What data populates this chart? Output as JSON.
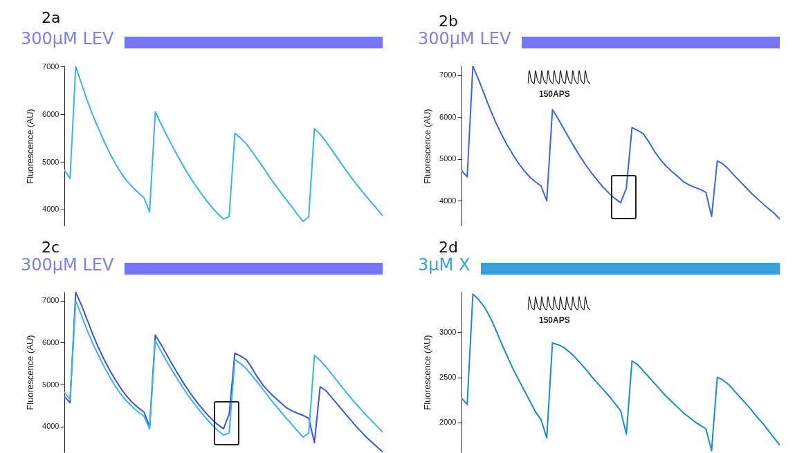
{
  "chart_data": [
    {
      "type": "line",
      "title": "2a",
      "ylabel": "Fluorescence (AU)",
      "tick_labels": "y",
      "grid": false,
      "annotations": [
        "300µM LEV"
      ],
      "categories": [
        null,
        null,
        null,
        null,
        null,
        null,
        null,
        null,
        null,
        null,
        null,
        null,
        null,
        null,
        null,
        null,
        null,
        null,
        null,
        null,
        null,
        null,
        null,
        null,
        null,
        null,
        null,
        null,
        null,
        null,
        null,
        null,
        null,
        null,
        null,
        null,
        null,
        null,
        null,
        null,
        null,
        null,
        null,
        null,
        null,
        null,
        null,
        null,
        null,
        null,
        null,
        null,
        null,
        null,
        null,
        null,
        null
      ],
      "ylim": [
        3650,
        7020
      ],
      "yticks": [
        4000,
        5000,
        6000,
        7000
      ],
      "series": [
        {
          "color": "#3bb4ea",
          "values": [
            4830,
            4650,
            7000,
            6650,
            6300,
            5980,
            5700,
            5430,
            5180,
            4960,
            4760,
            4600,
            4470,
            4350,
            4250,
            3950,
            6050,
            5800,
            5560,
            5330,
            5110,
            4900,
            4700,
            4520,
            4350,
            4190,
            4040,
            3910,
            3800,
            3850,
            5600,
            5500,
            5380,
            5220,
            5050,
            4880,
            4700,
            4530,
            4370,
            4210,
            4060,
            3900,
            3750,
            3850,
            5700,
            5580,
            5430,
            5260,
            5090,
            4920,
            4750,
            4590,
            4440,
            4290,
            4150,
            4010,
            3870
          ]
        }
      ]
    },
    {
      "type": "line",
      "title": "2b",
      "ylabel": "Fluorescence (AU)",
      "tick_labels": "y",
      "grid": false,
      "annotations": [
        "300µM LEV",
        "150APS"
      ],
      "categories": [
        null,
        null,
        null,
        null,
        null,
        null,
        null,
        null,
        null,
        null,
        null,
        null,
        null,
        null,
        null,
        null,
        null,
        null,
        null,
        null,
        null,
        null,
        null,
        null,
        null,
        null,
        null,
        null,
        null,
        null,
        null,
        null,
        null,
        null,
        null,
        null,
        null,
        null,
        null,
        null,
        null,
        null,
        null,
        null,
        null,
        null,
        null,
        null,
        null,
        null,
        null,
        null,
        null,
        null,
        null,
        null,
        null
      ],
      "ylim": [
        3390,
        7230
      ],
      "yticks": [
        4000,
        5000,
        6000,
        7000
      ],
      "series": [
        {
          "color": "#3a66e0",
          "values": [
            4720,
            4570,
            7220,
            6900,
            6550,
            6200,
            5880,
            5600,
            5340,
            5110,
            4900,
            4720,
            4570,
            4450,
            4350,
            4000,
            6180,
            5960,
            5720,
            5480,
            5250,
            5030,
            4830,
            4640,
            4470,
            4310,
            4170,
            4050,
            3950,
            4300,
            5750,
            5680,
            5600,
            5400,
            5170,
            4980,
            4830,
            4700,
            4580,
            4460,
            4380,
            4320,
            4270,
            4200,
            3620,
            4950,
            4880,
            4750,
            4600,
            4460,
            4320,
            4180,
            4050,
            3930,
            3810,
            3700,
            3560
          ]
        }
      ]
    },
    {
      "type": "line",
      "title": "2c",
      "ylabel": "Fluorescence (AU)",
      "tick_labels": "y",
      "grid": false,
      "annotations": [
        "300µM LEV"
      ],
      "categories": [
        null,
        null,
        null,
        null,
        null,
        null,
        null,
        null,
        null,
        null,
        null,
        null,
        null,
        null,
        null,
        null,
        null,
        null,
        null,
        null,
        null,
        null,
        null,
        null,
        null,
        null,
        null,
        null,
        null,
        null,
        null,
        null,
        null,
        null,
        null,
        null,
        null,
        null,
        null,
        null,
        null,
        null,
        null,
        null,
        null,
        null,
        null,
        null,
        null,
        null,
        null,
        null,
        null,
        null,
        null,
        null,
        null
      ],
      "ylim": [
        3390,
        7210
      ],
      "yticks": [
        4000,
        5000,
        6000,
        7000
      ],
      "series": [
        {
          "color": "#3a55dd",
          "values": [
            4720,
            4570,
            7200,
            6900,
            6550,
            6200,
            5880,
            5600,
            5340,
            5110,
            4900,
            4720,
            4570,
            4450,
            4350,
            4000,
            6180,
            5960,
            5720,
            5480,
            5250,
            5030,
            4830,
            4640,
            4470,
            4310,
            4170,
            4050,
            3950,
            4300,
            5750,
            5680,
            5600,
            5400,
            5170,
            4980,
            4830,
            4700,
            4580,
            4460,
            4380,
            4320,
            4270,
            4200,
            3620,
            4950,
            4860,
            4700,
            4540,
            4380,
            4220,
            4060,
            3910,
            3770,
            3640,
            3520,
            3400
          ]
        },
        {
          "color": "#3bb4ea",
          "values": [
            4830,
            4650,
            7000,
            6650,
            6300,
            5980,
            5700,
            5430,
            5180,
            4960,
            4760,
            4600,
            4470,
            4350,
            4250,
            3950,
            6050,
            5800,
            5560,
            5330,
            5110,
            4900,
            4700,
            4520,
            4350,
            4190,
            4040,
            3910,
            3800,
            3850,
            5600,
            5500,
            5380,
            5220,
            5050,
            4880,
            4700,
            4530,
            4370,
            4210,
            4060,
            3900,
            3750,
            3850,
            5700,
            5580,
            5430,
            5260,
            5090,
            4920,
            4750,
            4590,
            4440,
            4290,
            4150,
            4010,
            3870
          ]
        }
      ]
    },
    {
      "type": "line",
      "title": "2d",
      "ylabel": "Fluorescence (AU)",
      "tick_labels": "y",
      "grid": false,
      "annotations": [
        "3µM X",
        "150APS"
      ],
      "categories": [
        null,
        null,
        null,
        null,
        null,
        null,
        null,
        null,
        null,
        null,
        null,
        null,
        null,
        null,
        null,
        null,
        null,
        null,
        null,
        null,
        null,
        null,
        null,
        null,
        null,
        null,
        null,
        null,
        null,
        null,
        null,
        null,
        null,
        null,
        null,
        null,
        null,
        null,
        null,
        null,
        null,
        null,
        null,
        null,
        null,
        null,
        null,
        null,
        null,
        null,
        null,
        null,
        null,
        null,
        null,
        null,
        null
      ],
      "ylim": [
        1670,
        3445
      ],
      "yticks": [
        2000,
        2500,
        3000
      ],
      "series": [
        {
          "color": "#1a8cc8",
          "values": [
            2270,
            2200,
            3420,
            3360,
            3280,
            3170,
            3030,
            2880,
            2740,
            2600,
            2480,
            2360,
            2240,
            2120,
            2030,
            1830,
            2880,
            2860,
            2830,
            2780,
            2720,
            2650,
            2580,
            2500,
            2430,
            2360,
            2290,
            2210,
            2130,
            1870,
            2680,
            2640,
            2570,
            2500,
            2430,
            2360,
            2290,
            2230,
            2170,
            2110,
            2060,
            2010,
            1970,
            1930,
            1690,
            2500,
            2470,
            2420,
            2350,
            2280,
            2210,
            2140,
            2060,
            1990,
            1910,
            1830,
            1750
          ]
        }
      ]
    }
  ]
}
